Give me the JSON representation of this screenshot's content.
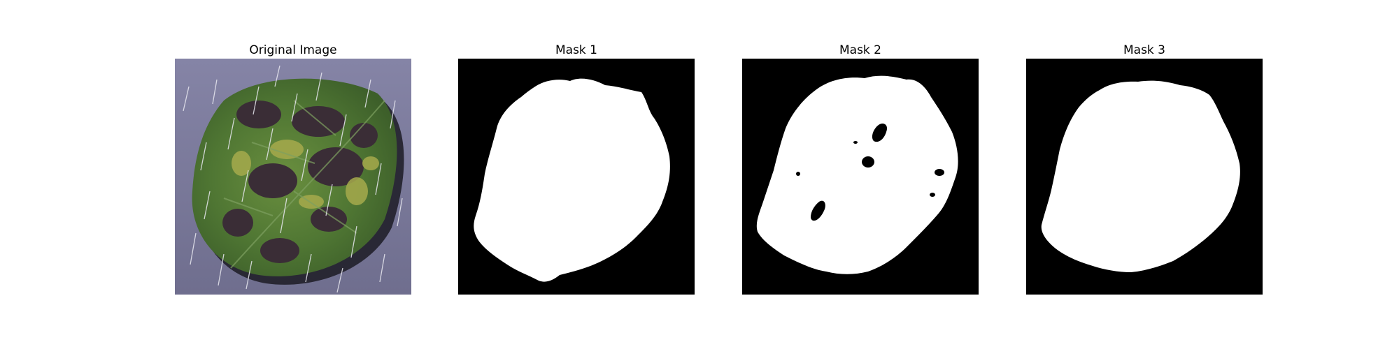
{
  "figure": {
    "panels": [
      {
        "title": "Original Image",
        "kind": "photo"
      },
      {
        "title": "Mask 1",
        "kind": "mask"
      },
      {
        "title": "Mask 2",
        "kind": "mask"
      },
      {
        "title": "Mask 3",
        "kind": "mask"
      }
    ]
  },
  "colors": {
    "mask_background": "#000000",
    "mask_foreground": "#ffffff",
    "photo_background": "#7b7a9a",
    "leaf_green": "#5f8a3a",
    "leaf_dark": "#3a2f3a",
    "leaf_yellow": "#a3a84a",
    "rain": "#e8e8f0"
  }
}
